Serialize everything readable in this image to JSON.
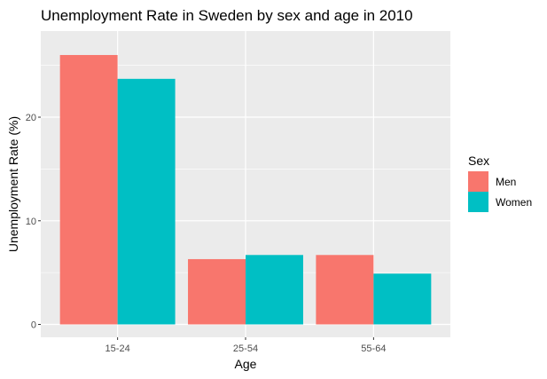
{
  "chart_data": {
    "type": "bar",
    "title": "Unemployment Rate in Sweden by sex and age in 2010",
    "xlabel": "Age",
    "ylabel": "Unemployment Rate (%)",
    "categories": [
      "15-24",
      "25-54",
      "55-64"
    ],
    "series": [
      {
        "name": "Men",
        "color": "#F8766D",
        "values": [
          26.0,
          6.3,
          6.7
        ]
      },
      {
        "name": "Women",
        "color": "#00BFC4",
        "values": [
          23.7,
          6.7,
          4.9
        ]
      }
    ],
    "y_ticks": [
      0,
      10,
      20
    ],
    "ylim": [
      0,
      27.3
    ],
    "legend": {
      "title": "Sex",
      "placement": "right"
    },
    "grid": true,
    "panel_background": "#EBEBEB"
  }
}
